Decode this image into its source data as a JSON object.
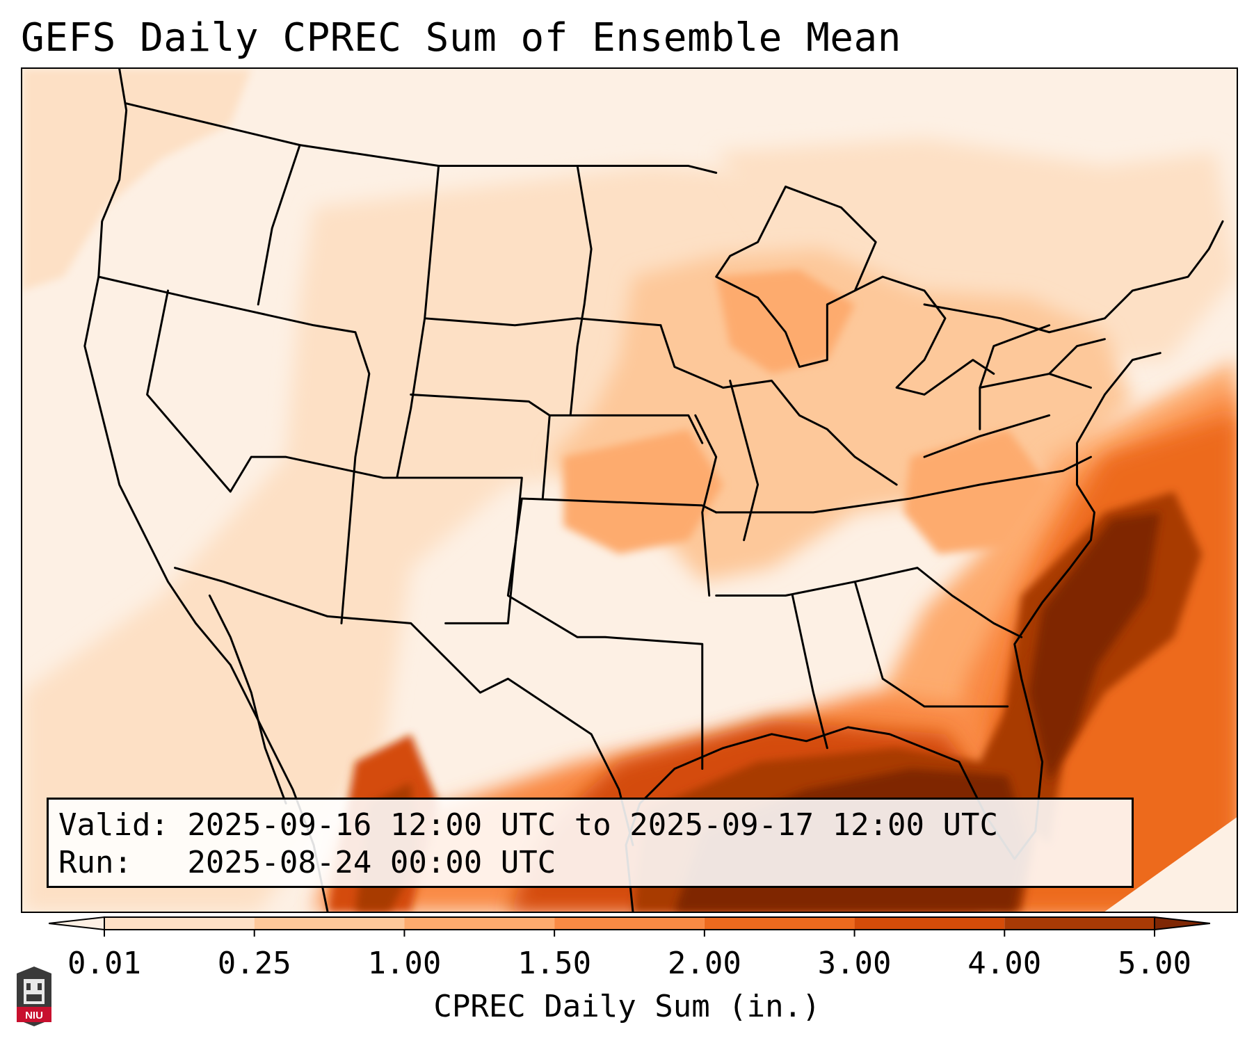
{
  "title": "GEFS Daily CPREC Sum of Ensemble Mean",
  "info": {
    "valid_label": "Valid: 2025-09-16 12:00 UTC to 2025-09-17 12:00 UTC",
    "run_label": "Run:   2025-08-24 00:00 UTC"
  },
  "colorbar": {
    "label": "CPREC Daily Sum (in.)",
    "ticks": [
      "0.01",
      "0.25",
      "1.00",
      "1.50",
      "2.00",
      "3.00",
      "4.00",
      "5.00"
    ],
    "colors": [
      "#fdf0e4",
      "#fde0c5",
      "#fdc89a",
      "#fdab6e",
      "#f98a44",
      "#ed6a1e",
      "#d44c09",
      "#a83a05",
      "#7f2704"
    ],
    "extend": "both"
  },
  "logo": {
    "text": "NIU"
  }
}
